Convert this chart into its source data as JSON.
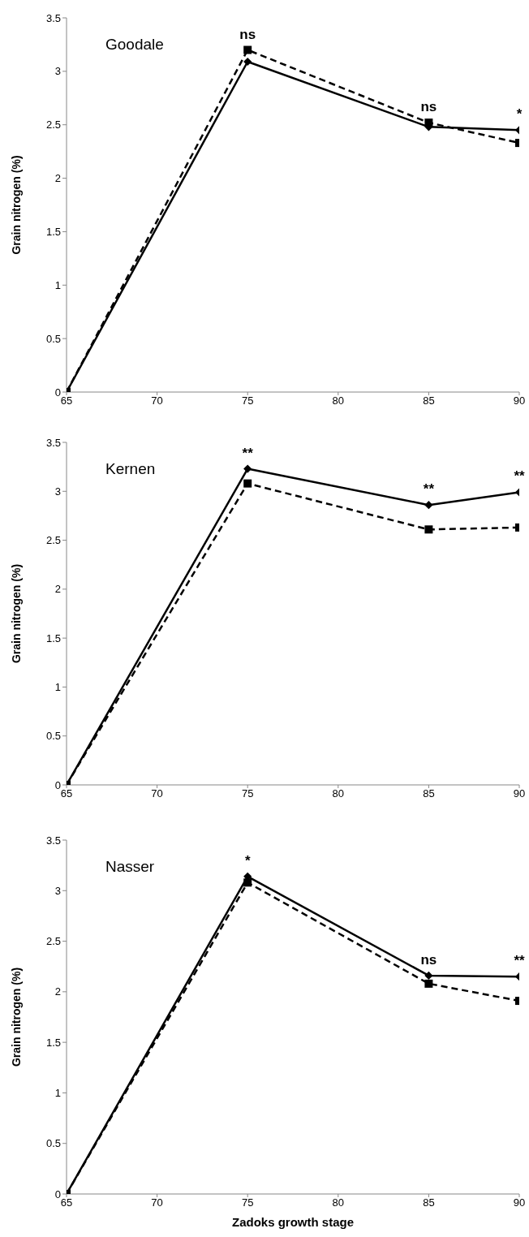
{
  "chart_data": [
    {
      "type": "line",
      "title": "Goodale",
      "ylabel": "Grain nitrogen (%)",
      "x": [
        65,
        75,
        85,
        90
      ],
      "xlim": [
        65,
        90
      ],
      "xticks": [
        65,
        70,
        75,
        80,
        85,
        90
      ],
      "ylim": [
        0,
        3.5
      ],
      "yticks": [
        0,
        0.5,
        1,
        1.5,
        2,
        2.5,
        3,
        3.5
      ],
      "grid": false,
      "legend": false,
      "series": [
        {
          "color": "#000000",
          "values": [
            0,
            3.2,
            2.52,
            2.33
          ],
          "marker": "square",
          "line_style": "dashed"
        },
        {
          "color": "#000000",
          "values": [
            0,
            3.09,
            2.48,
            2.45
          ],
          "marker": "diamond",
          "line_style": "solid"
        }
      ],
      "annotations": [
        {
          "text": "ns",
          "x": 75,
          "y": 3.2
        },
        {
          "text": "ns",
          "x": 85,
          "y": 2.52
        },
        {
          "text": "*",
          "x": 90,
          "y": 2.45
        }
      ]
    },
    {
      "type": "line",
      "title": "Kernen",
      "ylabel": "Grain nitrogen (%)",
      "x": [
        65,
        75,
        85,
        90
      ],
      "xlim": [
        65,
        90
      ],
      "xticks": [
        65,
        70,
        75,
        80,
        85,
        90
      ],
      "ylim": [
        0,
        3.5
      ],
      "yticks": [
        0,
        0.5,
        1,
        1.5,
        2,
        2.5,
        3,
        3.5
      ],
      "grid": false,
      "legend": false,
      "series": [
        {
          "color": "#000000",
          "values": [
            0,
            3.08,
            2.61,
            2.63
          ],
          "marker": "square",
          "line_style": "dashed"
        },
        {
          "color": "#000000",
          "values": [
            0,
            3.23,
            2.86,
            2.99
          ],
          "marker": "diamond",
          "line_style": "solid"
        }
      ],
      "annotations": [
        {
          "text": "**",
          "x": 75,
          "y": 3.23
        },
        {
          "text": "**",
          "x": 85,
          "y": 2.86
        },
        {
          "text": "**",
          "x": 90,
          "y": 2.99
        }
      ]
    },
    {
      "type": "line",
      "title": "Nasser",
      "ylabel": "Grain nitrogen (%)",
      "xlabel": "Zadoks growth stage",
      "x": [
        65,
        75,
        85,
        90
      ],
      "xlim": [
        65,
        90
      ],
      "xticks": [
        65,
        70,
        75,
        80,
        85,
        90
      ],
      "ylim": [
        0,
        3.5
      ],
      "yticks": [
        0,
        0.5,
        1,
        1.5,
        2,
        2.5,
        3,
        3.5
      ],
      "grid": false,
      "legend": false,
      "series": [
        {
          "color": "#000000",
          "values": [
            0,
            3.08,
            2.08,
            1.91
          ],
          "marker": "square",
          "line_style": "dashed"
        },
        {
          "color": "#000000",
          "values": [
            0,
            3.14,
            2.16,
            2.15
          ],
          "marker": "diamond",
          "line_style": "solid"
        }
      ],
      "annotations": [
        {
          "text": "*",
          "x": 75,
          "y": 3.14
        },
        {
          "text": "ns",
          "x": 85,
          "y": 2.16
        },
        {
          "text": "**",
          "x": 90,
          "y": 2.15
        }
      ]
    }
  ]
}
